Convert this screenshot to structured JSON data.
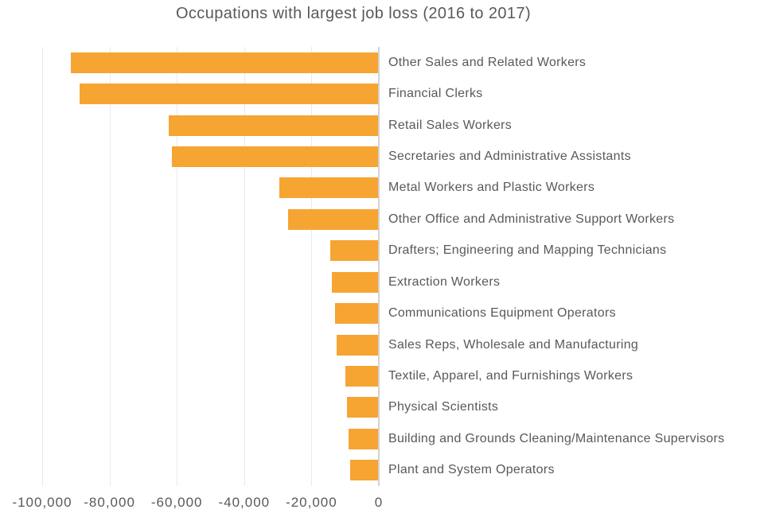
{
  "chart_data": {
    "type": "bar",
    "orientation": "horizontal",
    "title": "Occupations with largest job loss (2016 to 2017)",
    "categories": [
      "Other Sales and Related Workers",
      "Financial Clerks",
      "Retail Sales Workers",
      "Secretaries and Administrative Assistants",
      "Metal Workers and Plastic Workers",
      "Other Office and Administrative Support Workers",
      "Drafters; Engineering and Mapping Technicians",
      "Extraction Workers",
      "Communications Equipment Operators",
      "Sales Reps, Wholesale and Manufacturing",
      "Textile, Apparel, and Furnishings Workers",
      "Physical Scientists",
      "Building and Grounds Cleaning/Maintenance Supervisors",
      "Plant and System Operators"
    ],
    "values": [
      -91500,
      -89000,
      -62500,
      -61500,
      -29500,
      -27000,
      -14500,
      -14000,
      -13000,
      -12500,
      -10000,
      -9500,
      -9000,
      -8500
    ],
    "xlabel": "",
    "ylabel": "",
    "xlim": [
      -100000,
      0
    ],
    "x_ticks": [
      {
        "value": -100000,
        "label": "-100,000"
      },
      {
        "value": -80000,
        "label": "-80,000"
      },
      {
        "value": -60000,
        "label": "-60,000"
      },
      {
        "value": -40000,
        "label": "-40,000"
      },
      {
        "value": -20000,
        "label": "-20,000"
      },
      {
        "value": 0,
        "label": "0"
      }
    ],
    "grid": "vertical",
    "legend": "none",
    "bar_color": "#F6A432",
    "text_color": "#595959",
    "gridline_color": "#EAEAEA",
    "axis_line_color": "#D2D2D2",
    "background_color": "#FFFFFF"
  }
}
